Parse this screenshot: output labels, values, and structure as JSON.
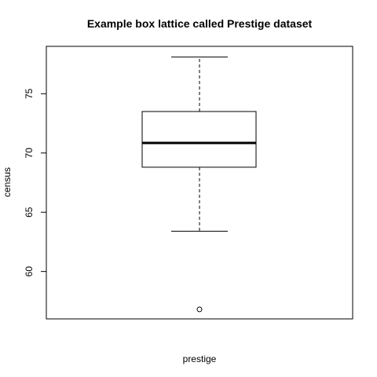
{
  "chart_data": {
    "type": "box",
    "title": "Example box lattice called Prestige dataset",
    "xlabel": "prestige",
    "ylabel": "census",
    "ylim": [
      56,
      79
    ],
    "yticks": [
      60,
      65,
      70,
      75
    ],
    "box": {
      "whisker_low": 63.4,
      "q1": 68.8,
      "median": 70.85,
      "q3": 73.5,
      "whisker_high": 78.1,
      "outliers": [
        56.8
      ]
    },
    "grid": false,
    "legend": "none",
    "colors": {
      "box_stroke": "#000000",
      "background": "#ffffff"
    }
  }
}
